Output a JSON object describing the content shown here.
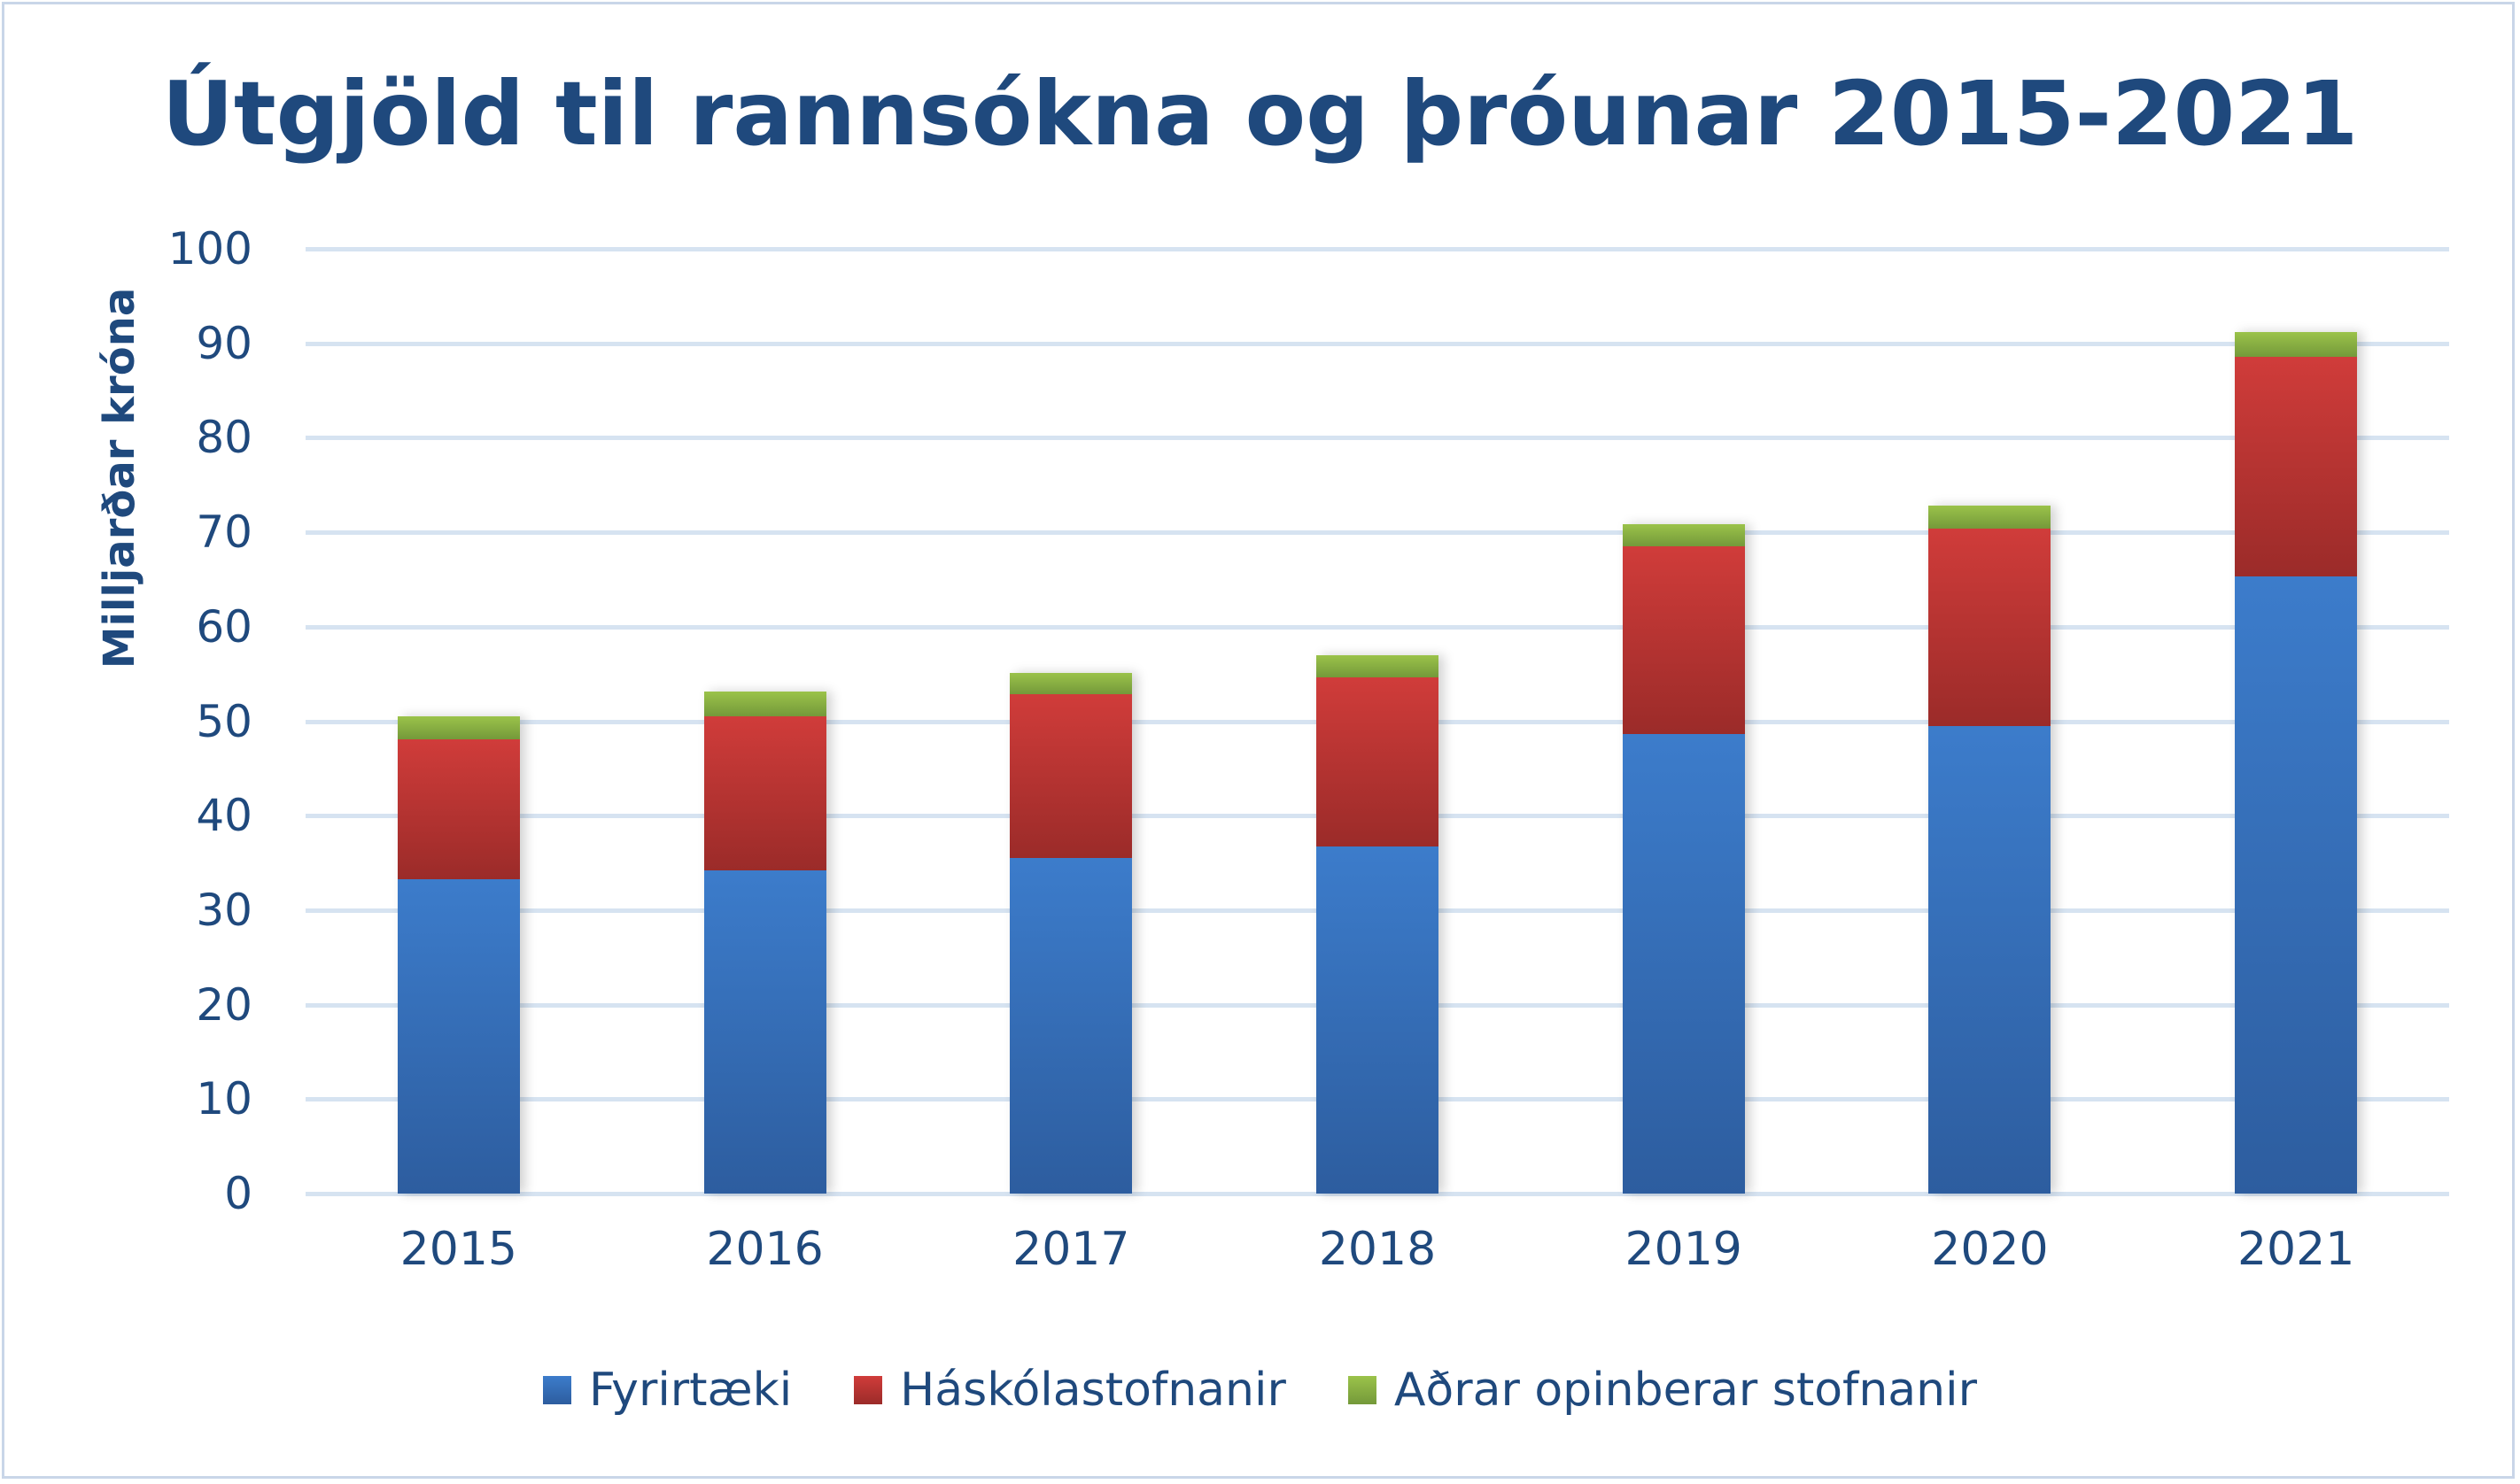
{
  "chart_data": {
    "type": "bar",
    "stacked": true,
    "title": "Útgjöld til rannsókna og þróunar 2015-2021",
    "xlabel": "",
    "ylabel": "Milljarðar króna",
    "ylim": [
      0,
      100
    ],
    "yticks": [
      0,
      10,
      20,
      30,
      40,
      50,
      60,
      70,
      80,
      90,
      100
    ],
    "grid": true,
    "legend_position": "bottom",
    "categories": [
      "2015",
      "2016",
      "2017",
      "2018",
      "2019",
      "2020",
      "2021"
    ],
    "series": [
      {
        "name": "Fyrirtæki",
        "color": "#3a78c8",
        "values": [
          33.3,
          34.2,
          35.5,
          36.7,
          48.6,
          49.5,
          65.3
        ]
      },
      {
        "name": "Háskólastofnanir",
        "color": "#c0392f",
        "values": [
          14.8,
          16.3,
          17.4,
          17.9,
          19.9,
          20.9,
          23.3
        ]
      },
      {
        "name": "Aðrar opinberar stofnanir",
        "color": "#8db444",
        "values": [
          2.4,
          2.6,
          2.2,
          2.4,
          2.4,
          2.4,
          2.6
        ]
      }
    ]
  }
}
